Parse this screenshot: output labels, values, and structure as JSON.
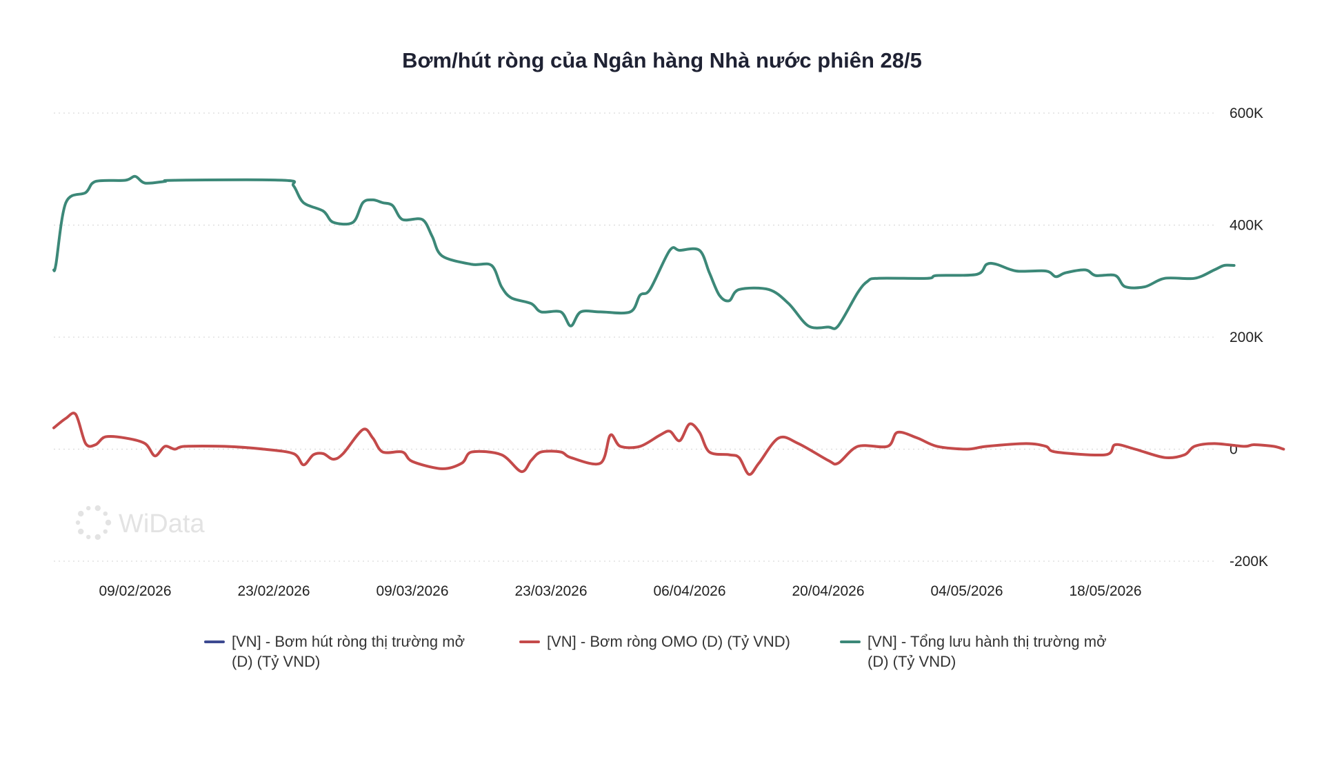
{
  "chart_data": {
    "type": "line",
    "title": "Bơm/hút ròng của Ngân hàng Nhà nước phiên 28/5",
    "x_tick_labels": [
      "09/02/2026",
      "23/02/2026",
      "09/03/2026",
      "23/03/2026",
      "06/04/2026",
      "20/04/2026",
      "04/05/2026",
      "18/05/2026"
    ],
    "y_tick_labels": [
      "600K",
      "400K",
      "200K",
      "0",
      "-200K"
    ],
    "ylim": [
      -200000,
      600000
    ],
    "y_axis_position": "right",
    "grid": true,
    "legend_position": "bottom",
    "series": [
      {
        "name": "[VN] - Bơm hút ròng thị trường mở (D) (Tỷ VND)",
        "name_line1": "[VN] - Bơm hút ròng thị trường mở",
        "name_line2": "(D) (Tỷ VND)",
        "color": "#3d4a91",
        "points": []
      },
      {
        "name": "[VN] - Bơm ròng OMO (D) (Tỷ VND)",
        "name_line1": "[VN] - Bơm ròng OMO (D) (Tỷ VND)",
        "name_line2": "",
        "color": "#c44a4a",
        "points": [
          [
            "2026-01-31",
            38000
          ],
          [
            "2026-02-02",
            55000
          ],
          [
            "2026-02-03",
            62000
          ],
          [
            "2026-02-04",
            10000
          ],
          [
            "2026-02-05",
            8000
          ],
          [
            "2026-02-06",
            22000
          ],
          [
            "2026-02-08",
            20000
          ],
          [
            "2026-02-10",
            10000
          ],
          [
            "2026-02-11",
            -12000
          ],
          [
            "2026-02-12",
            5000
          ],
          [
            "2026-02-13",
            0
          ],
          [
            "2026-02-14",
            5000
          ],
          [
            "2026-02-18",
            5000
          ],
          [
            "2026-02-22",
            0
          ],
          [
            "2026-02-25",
            -8000
          ],
          [
            "2026-02-26",
            -28000
          ],
          [
            "2026-02-27",
            -10000
          ],
          [
            "2026-02-28",
            -8000
          ],
          [
            "2026-03-01",
            -18000
          ],
          [
            "2026-03-02",
            -8000
          ],
          [
            "2026-03-04",
            35000
          ],
          [
            "2026-03-05",
            20000
          ],
          [
            "2026-03-06",
            -5000
          ],
          [
            "2026-03-08",
            -5000
          ],
          [
            "2026-03-09",
            -22000
          ],
          [
            "2026-03-12",
            -35000
          ],
          [
            "2026-03-14",
            -25000
          ],
          [
            "2026-03-15",
            -5000
          ],
          [
            "2026-03-18",
            -10000
          ],
          [
            "2026-03-20",
            -40000
          ],
          [
            "2026-03-21",
            -20000
          ],
          [
            "2026-03-22",
            -5000
          ],
          [
            "2026-03-24",
            -5000
          ],
          [
            "2026-03-25",
            -15000
          ],
          [
            "2026-03-28",
            -25000
          ],
          [
            "2026-03-29",
            25000
          ],
          [
            "2026-03-30",
            5000
          ],
          [
            "2026-04-01",
            5000
          ],
          [
            "2026-04-03",
            25000
          ],
          [
            "2026-04-04",
            32000
          ],
          [
            "2026-04-05",
            15000
          ],
          [
            "2026-04-06",
            45000
          ],
          [
            "2026-04-07",
            30000
          ],
          [
            "2026-04-08",
            -5000
          ],
          [
            "2026-04-10",
            -10000
          ],
          [
            "2026-04-11",
            -15000
          ],
          [
            "2026-04-12",
            -45000
          ],
          [
            "2026-04-13",
            -25000
          ],
          [
            "2026-04-15",
            20000
          ],
          [
            "2026-04-17",
            10000
          ],
          [
            "2026-04-20",
            -20000
          ],
          [
            "2026-04-21",
            -25000
          ],
          [
            "2026-04-23",
            5000
          ],
          [
            "2026-04-26",
            5000
          ],
          [
            "2026-04-27",
            30000
          ],
          [
            "2026-04-29",
            20000
          ],
          [
            "2026-05-01",
            5000
          ],
          [
            "2026-05-04",
            0
          ],
          [
            "2026-05-06",
            5000
          ],
          [
            "2026-05-10",
            10000
          ],
          [
            "2026-05-12",
            5000
          ],
          [
            "2026-05-13",
            -5000
          ],
          [
            "2026-05-18",
            -10000
          ],
          [
            "2026-05-19",
            8000
          ],
          [
            "2026-05-21",
            0
          ],
          [
            "2026-05-24",
            -15000
          ],
          [
            "2026-05-26",
            -10000
          ],
          [
            "2026-05-27",
            5000
          ],
          [
            "2026-05-29",
            10000
          ],
          [
            "2026-06-01",
            5000
          ],
          [
            "2026-06-02",
            8000
          ],
          [
            "2026-06-04",
            5000
          ],
          [
            "2026-06-05",
            0
          ]
        ]
      },
      {
        "name": "[VN] - Tổng lưu hành thị trường mở (D) (Tỷ VND)",
        "name_line1": "[VN] - Tổng lưu hành thị trường mở",
        "name_line2": "(D) (Tỷ VND)",
        "color": "#3c8878",
        "points": [
          [
            "2026-01-31",
            320000
          ],
          [
            "2026-02-01",
            330000
          ],
          [
            "2026-02-02",
            440000
          ],
          [
            "2026-02-04",
            458000
          ],
          [
            "2026-02-05",
            478000
          ],
          [
            "2026-02-08",
            480000
          ],
          [
            "2026-02-09",
            487000
          ],
          [
            "2026-02-10",
            475000
          ],
          [
            "2026-02-12",
            478000
          ],
          [
            "2026-02-13",
            480000
          ],
          [
            "2026-02-24",
            480000
          ],
          [
            "2026-02-25",
            470000
          ],
          [
            "2026-02-26",
            440000
          ],
          [
            "2026-02-28",
            425000
          ],
          [
            "2026-03-01",
            405000
          ],
          [
            "2026-03-03",
            405000
          ],
          [
            "2026-03-04",
            440000
          ],
          [
            "2026-03-05",
            445000
          ],
          [
            "2026-03-06",
            440000
          ],
          [
            "2026-03-07",
            435000
          ],
          [
            "2026-03-08",
            410000
          ],
          [
            "2026-03-10",
            410000
          ],
          [
            "2026-03-11",
            380000
          ],
          [
            "2026-03-12",
            345000
          ],
          [
            "2026-03-15",
            330000
          ],
          [
            "2026-03-17",
            328000
          ],
          [
            "2026-03-18",
            290000
          ],
          [
            "2026-03-19",
            270000
          ],
          [
            "2026-03-21",
            260000
          ],
          [
            "2026-03-22",
            245000
          ],
          [
            "2026-03-24",
            245000
          ],
          [
            "2026-03-25",
            220000
          ],
          [
            "2026-03-26",
            245000
          ],
          [
            "2026-03-28",
            245000
          ],
          [
            "2026-03-31",
            245000
          ],
          [
            "2026-04-01",
            275000
          ],
          [
            "2026-04-02",
            285000
          ],
          [
            "2026-04-04",
            355000
          ],
          [
            "2026-04-05",
            355000
          ],
          [
            "2026-04-07",
            355000
          ],
          [
            "2026-04-08",
            315000
          ],
          [
            "2026-04-09",
            275000
          ],
          [
            "2026-04-10",
            265000
          ],
          [
            "2026-04-11",
            285000
          ],
          [
            "2026-04-14",
            285000
          ],
          [
            "2026-04-16",
            260000
          ],
          [
            "2026-04-18",
            220000
          ],
          [
            "2026-04-20",
            218000
          ],
          [
            "2026-04-21",
            220000
          ],
          [
            "2026-04-23",
            280000
          ],
          [
            "2026-04-24",
            300000
          ],
          [
            "2026-04-25",
            305000
          ],
          [
            "2026-04-30",
            305000
          ],
          [
            "2026-05-01",
            310000
          ],
          [
            "2026-05-05",
            312000
          ],
          [
            "2026-05-06",
            330000
          ],
          [
            "2026-05-07",
            330000
          ],
          [
            "2026-05-09",
            318000
          ],
          [
            "2026-05-12",
            318000
          ],
          [
            "2026-05-13",
            308000
          ],
          [
            "2026-05-14",
            315000
          ],
          [
            "2026-05-16",
            320000
          ],
          [
            "2026-05-17",
            310000
          ],
          [
            "2026-05-19",
            310000
          ],
          [
            "2026-05-20",
            290000
          ],
          [
            "2026-05-22",
            290000
          ],
          [
            "2026-05-24",
            305000
          ],
          [
            "2026-05-27",
            305000
          ],
          [
            "2026-05-29",
            320000
          ],
          [
            "2026-05-30",
            328000
          ],
          [
            "2026-05-31",
            328000
          ]
        ]
      }
    ],
    "watermark": "WiData"
  }
}
